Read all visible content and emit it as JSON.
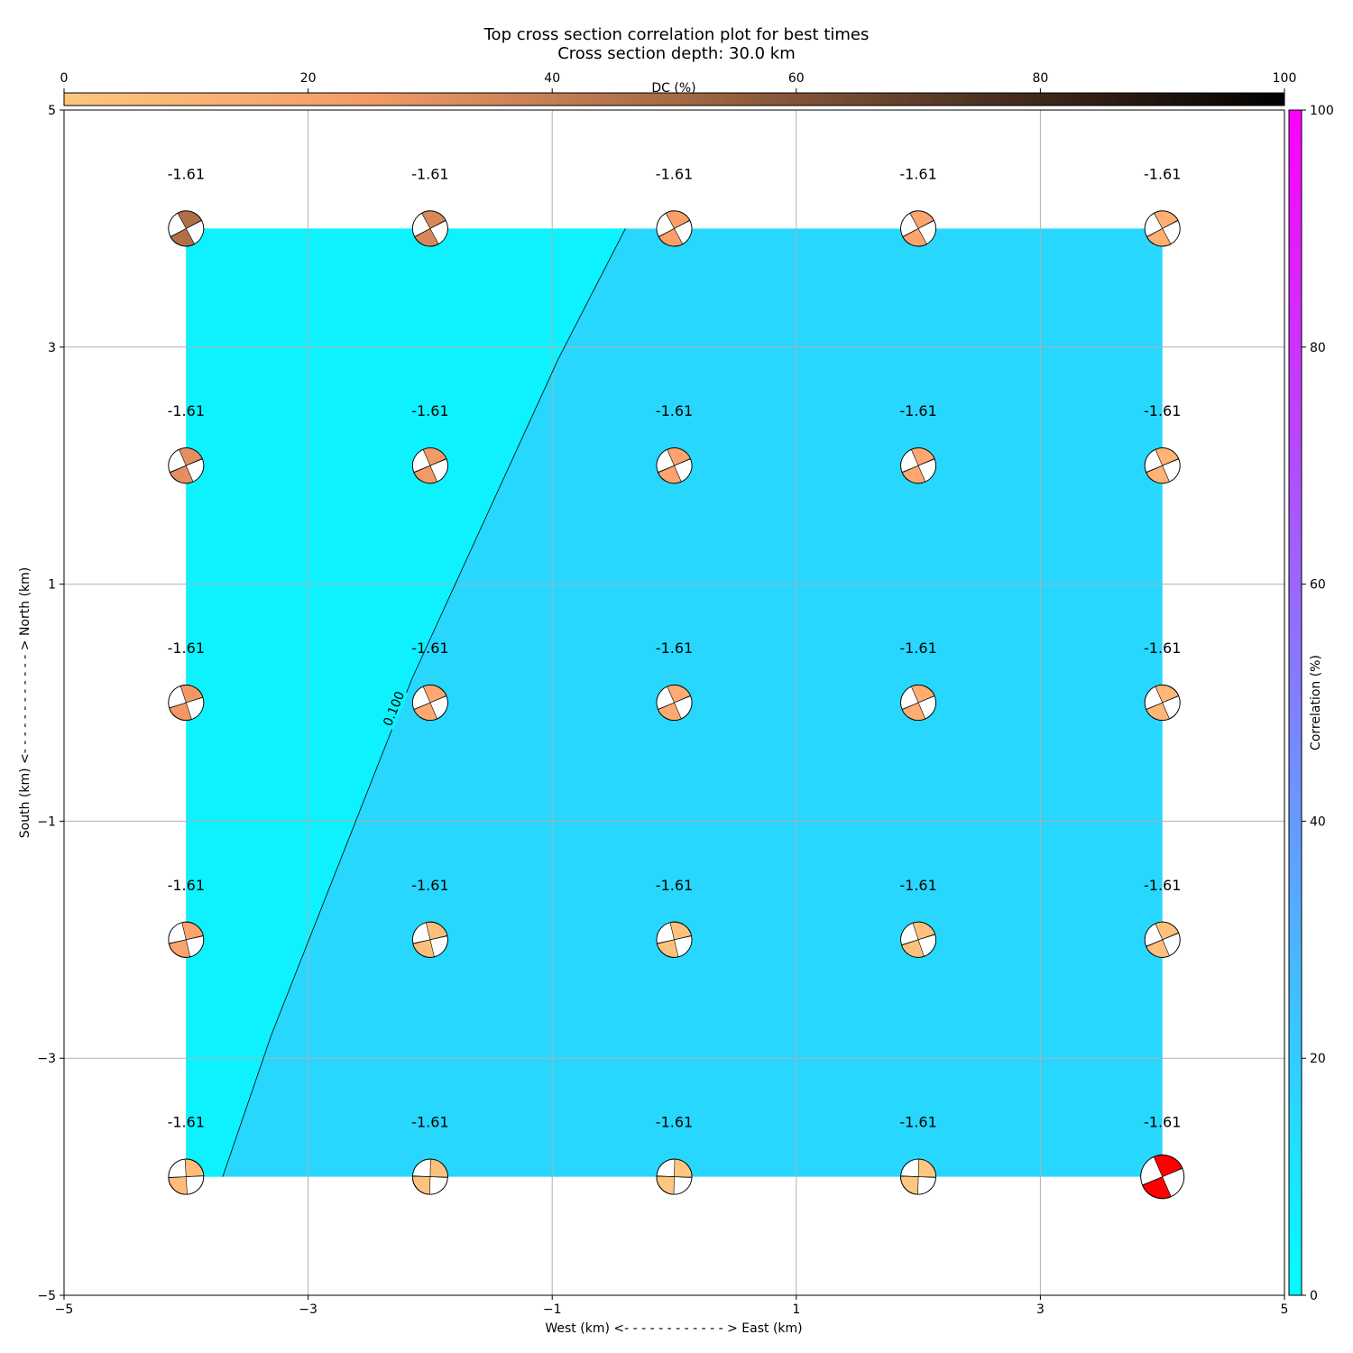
{
  "chart_data": {
    "type": "heatmap",
    "title": "Top cross section correlation plot for best times",
    "subtitle": "Cross section depth: 30.0 km",
    "xlabel": "West (km) <- - - - - - - - - - - - > East (km)",
    "ylabel": "South (km) <- - - - - - - - - - - - > North (km)",
    "xlim": [
      -5,
      5
    ],
    "ylim": [
      -5,
      5
    ],
    "x_ticks": [
      -5,
      -3,
      -1,
      1,
      3,
      5
    ],
    "y_ticks": [
      -5,
      -3,
      -1,
      1,
      3,
      5
    ],
    "x_tick_labels": [
      "−5",
      "−3",
      "−1",
      "1",
      "3",
      "5"
    ],
    "y_tick_labels": [
      "−5",
      "−3",
      "−1",
      "1",
      "3",
      "5"
    ],
    "grid": true,
    "field_extent": {
      "x": [
        -4,
        4
      ],
      "y": [
        -4,
        4
      ]
    },
    "regions": [
      {
        "name": "low",
        "color": "#0df2fe"
      },
      {
        "name": "high",
        "color": "#27d7fe"
      }
    ],
    "contour": {
      "label": "0.100",
      "points": [
        [
          -0.4,
          4
        ],
        [
          -0.95,
          2.9
        ],
        [
          -2.15,
          0.2
        ],
        [
          -3.3,
          -2.8
        ],
        [
          -3.7,
          -4
        ]
      ]
    },
    "dc_colorbar": {
      "label": "DC (%)",
      "ticks": [
        0,
        20,
        40,
        60,
        80,
        100
      ],
      "range": [
        0,
        100
      ],
      "position": "top"
    },
    "corr_colorbar": {
      "label": "Correlation (%)",
      "ticks": [
        0,
        20,
        40,
        60,
        80,
        100
      ],
      "range": [
        0,
        100
      ],
      "position": "right"
    },
    "points": [
      {
        "x": -4,
        "y": 4,
        "label": "-1.61",
        "color": "#b06f48",
        "rot": -20
      },
      {
        "x": -2,
        "y": 4,
        "label": "-1.61",
        "color": "#d9885c",
        "rot": -20
      },
      {
        "x": 0,
        "y": 4,
        "label": "-1.61",
        "color": "#fa9f6a",
        "rot": -20
      },
      {
        "x": 2,
        "y": 4,
        "label": "-1.61",
        "color": "#fda56e",
        "rot": -20
      },
      {
        "x": 4,
        "y": 4,
        "label": "-1.61",
        "color": "#ffaf72",
        "rot": -20
      },
      {
        "x": -4,
        "y": 2,
        "label": "-1.61",
        "color": "#e48f60",
        "rot": -15
      },
      {
        "x": -2,
        "y": 2,
        "label": "-1.61",
        "color": "#f39a67",
        "rot": -15
      },
      {
        "x": 0,
        "y": 2,
        "label": "-1.61",
        "color": "#fca46d",
        "rot": -15
      },
      {
        "x": 2,
        "y": 2,
        "label": "-1.61",
        "color": "#fea870",
        "rot": -15
      },
      {
        "x": 4,
        "y": 2,
        "label": "-1.61",
        "color": "#ffb374",
        "rot": -15
      },
      {
        "x": -4,
        "y": 0,
        "label": "-1.61",
        "color": "#f19865",
        "rot": -10
      },
      {
        "x": -2,
        "y": 0,
        "label": "-1.61",
        "color": "#fea870",
        "rot": -15
      },
      {
        "x": 0,
        "y": 0,
        "label": "-1.61",
        "color": "#ffaa70",
        "rot": -15
      },
      {
        "x": 2,
        "y": 0,
        "label": "-1.61",
        "color": "#ffad71",
        "rot": -15
      },
      {
        "x": 4,
        "y": 0,
        "label": "-1.61",
        "color": "#ffb676",
        "rot": -15
      },
      {
        "x": -4,
        "y": -2,
        "label": "-1.61",
        "color": "#fca46d",
        "rot": -5
      },
      {
        "x": -2,
        "y": -2,
        "label": "-1.61",
        "color": "#ffbf7c",
        "rot": -5
      },
      {
        "x": 0,
        "y": -2,
        "label": "-1.61",
        "color": "#ffc27e",
        "rot": -5
      },
      {
        "x": 2,
        "y": -2,
        "label": "-1.61",
        "color": "#ffc27e",
        "rot": -10
      },
      {
        "x": 4,
        "y": -2,
        "label": "-1.61",
        "color": "#ffc07d",
        "rot": -15
      },
      {
        "x": -4,
        "y": -4,
        "label": "-1.61",
        "color": "#ffbc7a",
        "rot": 5
      },
      {
        "x": -2,
        "y": -4,
        "label": "-1.61",
        "color": "#ffc27e",
        "rot": 10
      },
      {
        "x": 0,
        "y": -4,
        "label": "-1.61",
        "color": "#ffc680",
        "rot": 10
      },
      {
        "x": 2,
        "y": -4,
        "label": "-1.61",
        "color": "#ffc680",
        "rot": 10
      },
      {
        "x": 4,
        "y": -4,
        "label": "-1.61",
        "color": "#ff0000",
        "rot": -15
      }
    ]
  }
}
